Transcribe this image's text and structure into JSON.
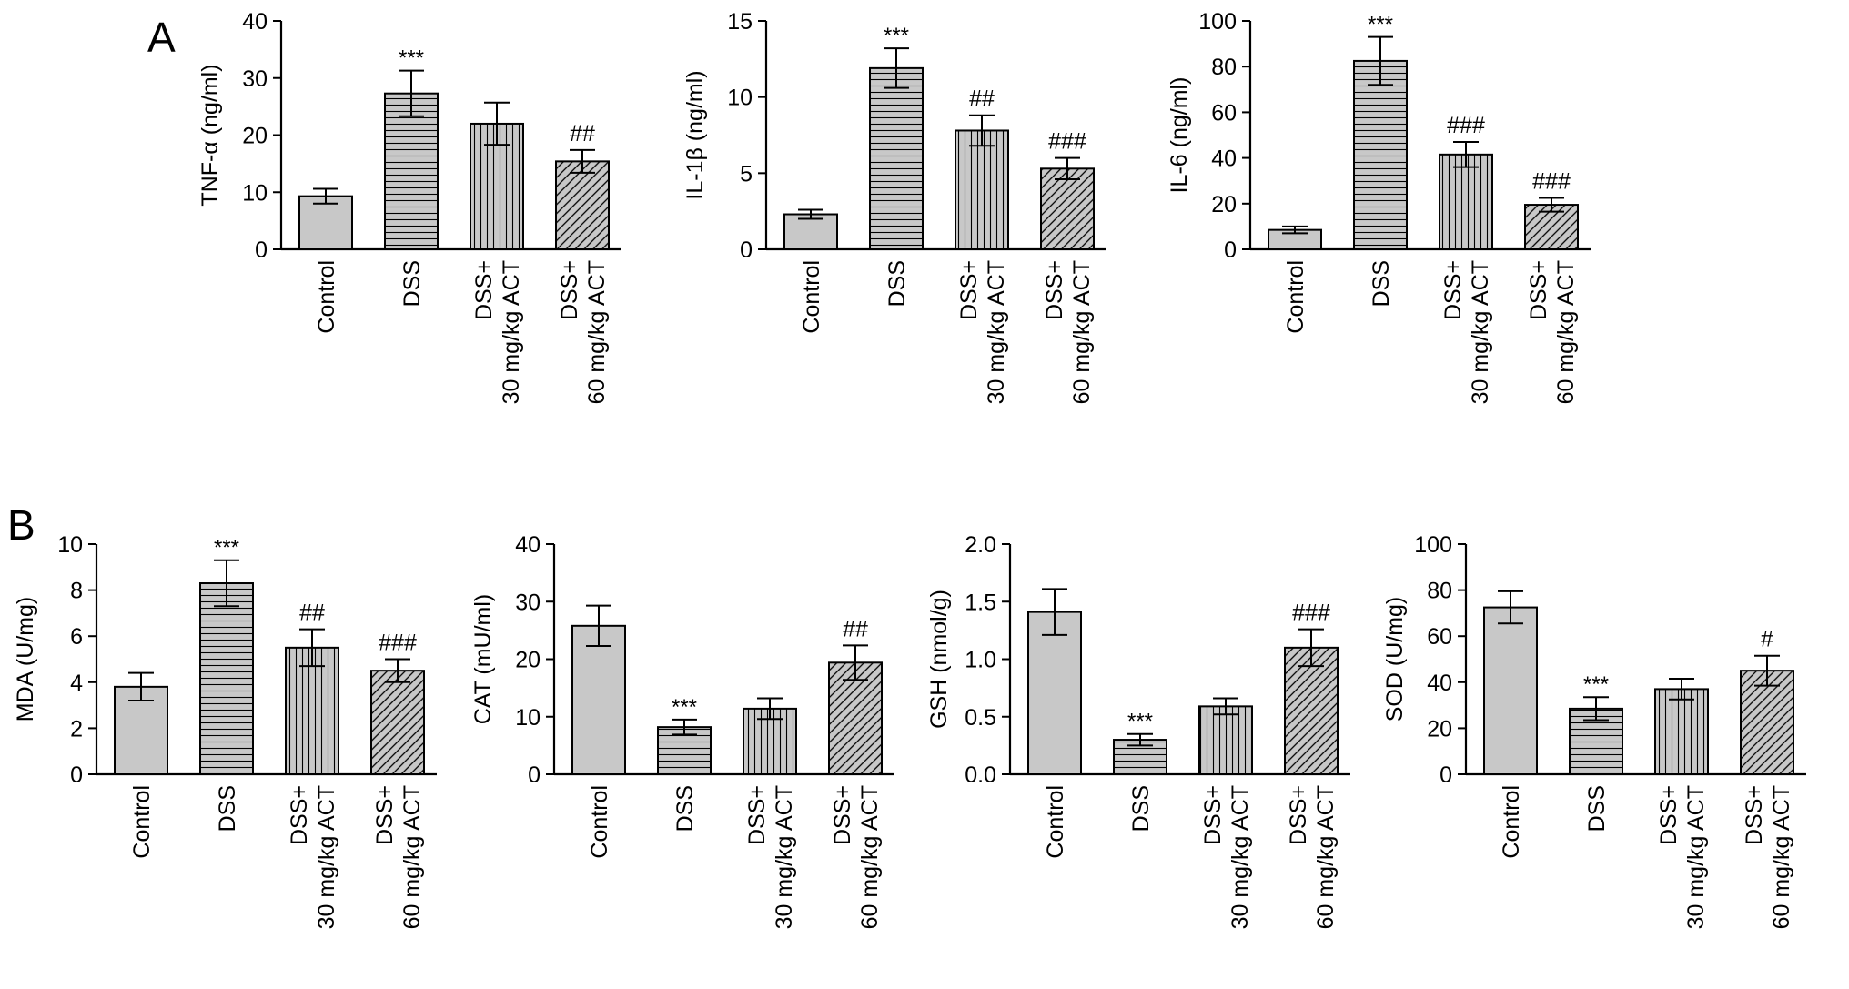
{
  "panel_labels": [
    "A",
    "B"
  ],
  "colors": {
    "bar_fill": "#c8c8c8",
    "stroke": "#000000",
    "background": "#ffffff"
  },
  "chart_data": [
    {
      "panel": "A",
      "type": "bar",
      "categories": [
        "Control",
        "DSS",
        "DSS+|30 mg/kg ACT",
        "DSS+|60 mg/kg ACT"
      ],
      "values": [
        9.3,
        27.3,
        22.0,
        15.4
      ],
      "errors": [
        1.3,
        4.0,
        3.7,
        2.0
      ],
      "annotations": [
        "",
        "***",
        "",
        "##"
      ],
      "patterns": [
        "solid",
        "horizontal",
        "vertical",
        "diagonal"
      ],
      "ylabel": "TNF-α (ng/ml)",
      "ylim": [
        0,
        40
      ],
      "yticks": [
        "0",
        "10",
        "20",
        "30",
        "40"
      ]
    },
    {
      "panel": "A",
      "type": "bar",
      "categories": [
        "Control",
        "DSS",
        "DSS+|30 mg/kg ACT",
        "DSS+|60 mg/kg ACT"
      ],
      "values": [
        2.3,
        11.9,
        7.8,
        5.3
      ],
      "errors": [
        0.3,
        1.3,
        1.0,
        0.7
      ],
      "annotations": [
        "",
        "***",
        "##",
        "###"
      ],
      "patterns": [
        "solid",
        "horizontal",
        "vertical",
        "diagonal"
      ],
      "ylabel": "IL-1β (ng/ml)",
      "ylim": [
        0,
        15
      ],
      "yticks": [
        "0",
        "5",
        "10",
        "15"
      ]
    },
    {
      "panel": "A",
      "type": "bar",
      "categories": [
        "Control",
        "DSS",
        "DSS+|30 mg/kg ACT",
        "DSS+|60 mg/kg ACT"
      ],
      "values": [
        8.5,
        82.5,
        41.5,
        19.5
      ],
      "errors": [
        1.5,
        10.5,
        5.5,
        3.0
      ],
      "annotations": [
        "",
        "***",
        "###",
        "###"
      ],
      "patterns": [
        "solid",
        "horizontal",
        "vertical",
        "diagonal"
      ],
      "ylabel": "IL-6 (ng/ml)",
      "ylim": [
        0,
        100
      ],
      "yticks": [
        "0",
        "20",
        "40",
        "60",
        "80",
        "100"
      ]
    },
    {
      "panel": "B",
      "type": "bar",
      "categories": [
        "Control",
        "DSS",
        "DSS+|30 mg/kg ACT",
        "DSS+|60 mg/kg ACT"
      ],
      "values": [
        3.8,
        8.3,
        5.5,
        4.5
      ],
      "errors": [
        0.6,
        1.0,
        0.8,
        0.5
      ],
      "annotations": [
        "",
        "***",
        "##",
        "###"
      ],
      "patterns": [
        "solid",
        "horizontal",
        "vertical",
        "diagonal"
      ],
      "ylabel": "MDA (U/mg)",
      "ylim": [
        0,
        10
      ],
      "yticks": [
        "0",
        "2",
        "4",
        "6",
        "8",
        "10"
      ]
    },
    {
      "panel": "B",
      "type": "bar",
      "categories": [
        "Control",
        "DSS",
        "DSS+|30 mg/kg ACT",
        "DSS+|60 mg/kg ACT"
      ],
      "values": [
        25.8,
        8.2,
        11.4,
        19.4
      ],
      "errors": [
        3.5,
        1.3,
        1.8,
        3.0
      ],
      "annotations": [
        "",
        "***",
        "",
        "##"
      ],
      "patterns": [
        "solid",
        "horizontal",
        "vertical",
        "diagonal"
      ],
      "ylabel": "CAT (mU/ml)",
      "ylim": [
        0,
        40
      ],
      "yticks": [
        "0",
        "10",
        "20",
        "30",
        "40"
      ]
    },
    {
      "panel": "B",
      "type": "bar",
      "categories": [
        "Control",
        "DSS",
        "DSS+|30 mg/kg ACT",
        "DSS+|60 mg/kg ACT"
      ],
      "values": [
        1.41,
        0.3,
        0.59,
        1.1
      ],
      "errors": [
        0.2,
        0.05,
        0.07,
        0.16
      ],
      "annotations": [
        "",
        "***",
        "",
        "###"
      ],
      "patterns": [
        "solid",
        "horizontal",
        "vertical",
        "diagonal"
      ],
      "ylabel": "GSH (nmol/g)",
      "ylim": [
        0,
        2.0
      ],
      "yticks": [
        "0.0",
        "0.5",
        "1.0",
        "1.5",
        "2.0"
      ]
    },
    {
      "panel": "B",
      "type": "bar",
      "categories": [
        "Control",
        "DSS",
        "DSS+|30 mg/kg ACT",
        "DSS+|60 mg/kg ACT"
      ],
      "values": [
        72.5,
        28.5,
        37.0,
        45.0
      ],
      "errors": [
        7.0,
        5.0,
        4.5,
        6.5
      ],
      "annotations": [
        "",
        "***",
        "",
        "#"
      ],
      "patterns": [
        "solid",
        "horizontal",
        "vertical",
        "diagonal"
      ],
      "ylabel": "SOD (U/mg)",
      "ylim": [
        0,
        100
      ],
      "yticks": [
        "0",
        "20",
        "40",
        "60",
        "80",
        "100"
      ]
    }
  ]
}
